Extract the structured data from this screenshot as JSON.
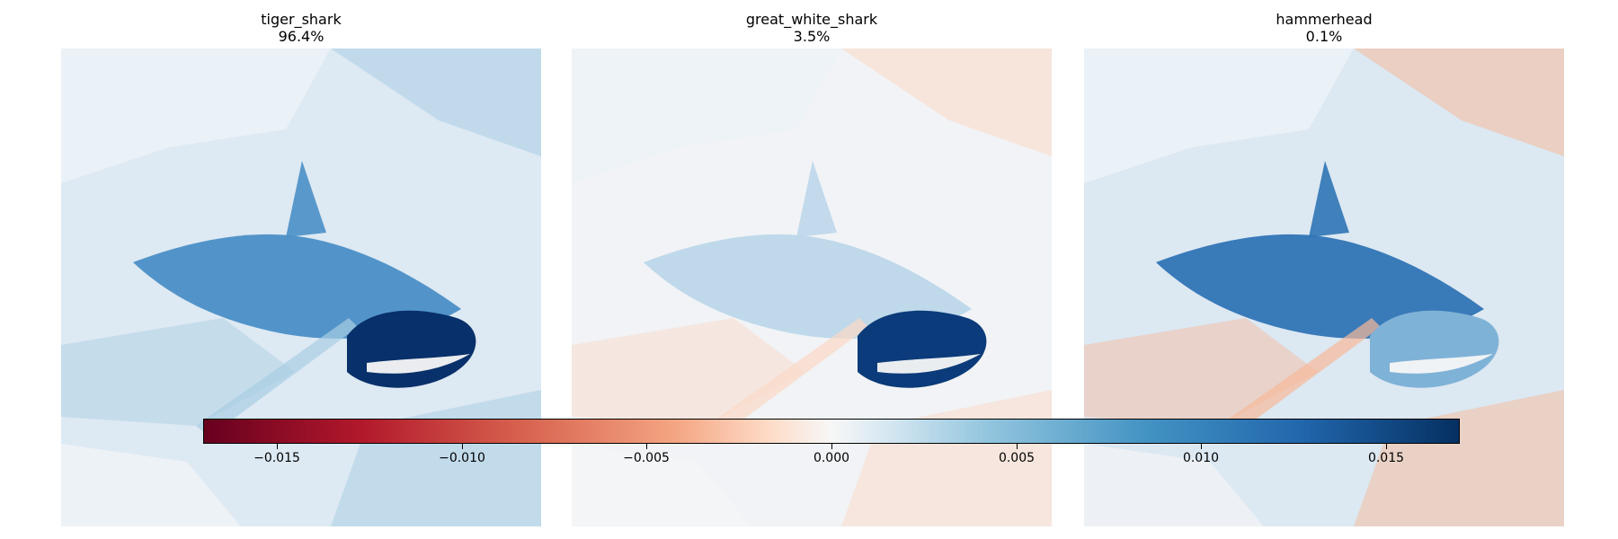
{
  "chart_data": {
    "type": "heatmap",
    "panels": [
      {
        "title": "tiger_shark",
        "subtitle": "96.4%",
        "base": "#dde9f3",
        "fish": "#4a8fc6",
        "fin": "#08306b",
        "accent": "#a8cde3"
      },
      {
        "title": "great_white_shark",
        "subtitle": "3.5%",
        "base": "#f1f3f6",
        "fish": "#bcd7ea",
        "fin": "#0b3b7a",
        "accent": "#fbd9c6"
      },
      {
        "title": "hammerhead",
        "subtitle": "0.1%",
        "base": "#dce8f2",
        "fish": "#2f74b5",
        "fin": "#7fb2d7",
        "accent": "#f6b99a"
      }
    ],
    "colorbar": {
      "range": [
        -0.017,
        0.017
      ],
      "ticks": [
        -0.015,
        -0.01,
        -0.005,
        0.0,
        0.005,
        0.01,
        0.015
      ],
      "tick_labels": [
        "−0.015",
        "−0.010",
        "−0.005",
        "0.000",
        "0.005",
        "0.010",
        "0.015"
      ],
      "colormap": "RdBu"
    }
  }
}
